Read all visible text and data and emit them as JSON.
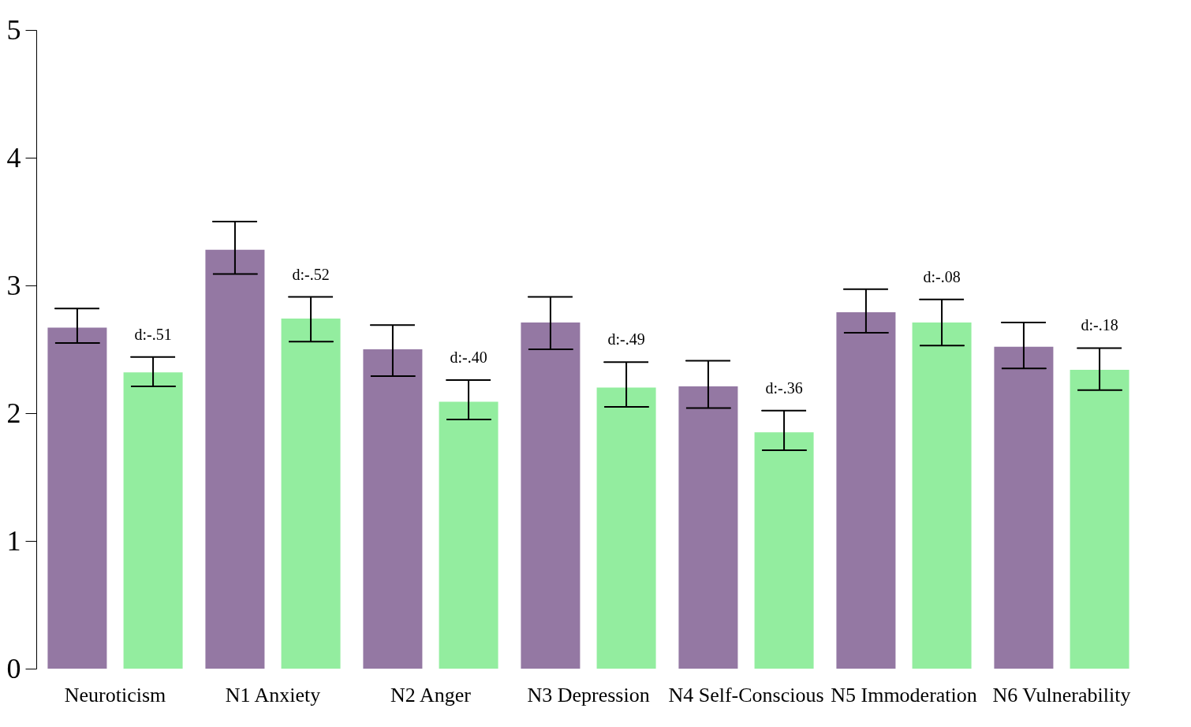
{
  "chart_data": {
    "type": "bar",
    "categories": [
      "Neuroticism",
      "N1 Anxiety",
      "N2 Anger",
      "N3 Depression",
      "N4 Self-Conscious",
      "N5 Immoderation",
      "N6 Vulnerability"
    ],
    "series": [
      {
        "color": "#9478a3",
        "values": [
          2.67,
          3.28,
          2.5,
          2.71,
          2.21,
          2.79,
          2.52
        ],
        "errors": [
          [
            2.55,
            2.82
          ],
          [
            3.09,
            3.5
          ],
          [
            2.29,
            2.69
          ],
          [
            2.5,
            2.91
          ],
          [
            2.04,
            2.41
          ],
          [
            2.63,
            2.97
          ],
          [
            2.35,
            2.71
          ]
        ]
      },
      {
        "color": "#93ed9f",
        "values": [
          2.32,
          2.74,
          2.09,
          2.2,
          1.85,
          2.71,
          2.34
        ],
        "errors": [
          [
            2.21,
            2.44
          ],
          [
            2.56,
            2.91
          ],
          [
            1.95,
            2.26
          ],
          [
            2.05,
            2.4
          ],
          [
            1.71,
            2.02
          ],
          [
            2.53,
            2.89
          ],
          [
            2.18,
            2.51
          ]
        ]
      }
    ],
    "annotations": [
      "d:-.51",
      "d:-.52",
      "d:-.40",
      "d:-.49",
      "d:-.36",
      "d:-.08",
      "d:-.18"
    ],
    "ylim": [
      0,
      5
    ],
    "yticks": [
      0,
      1,
      2,
      3,
      4,
      5
    ],
    "grid": false,
    "legend": false
  }
}
